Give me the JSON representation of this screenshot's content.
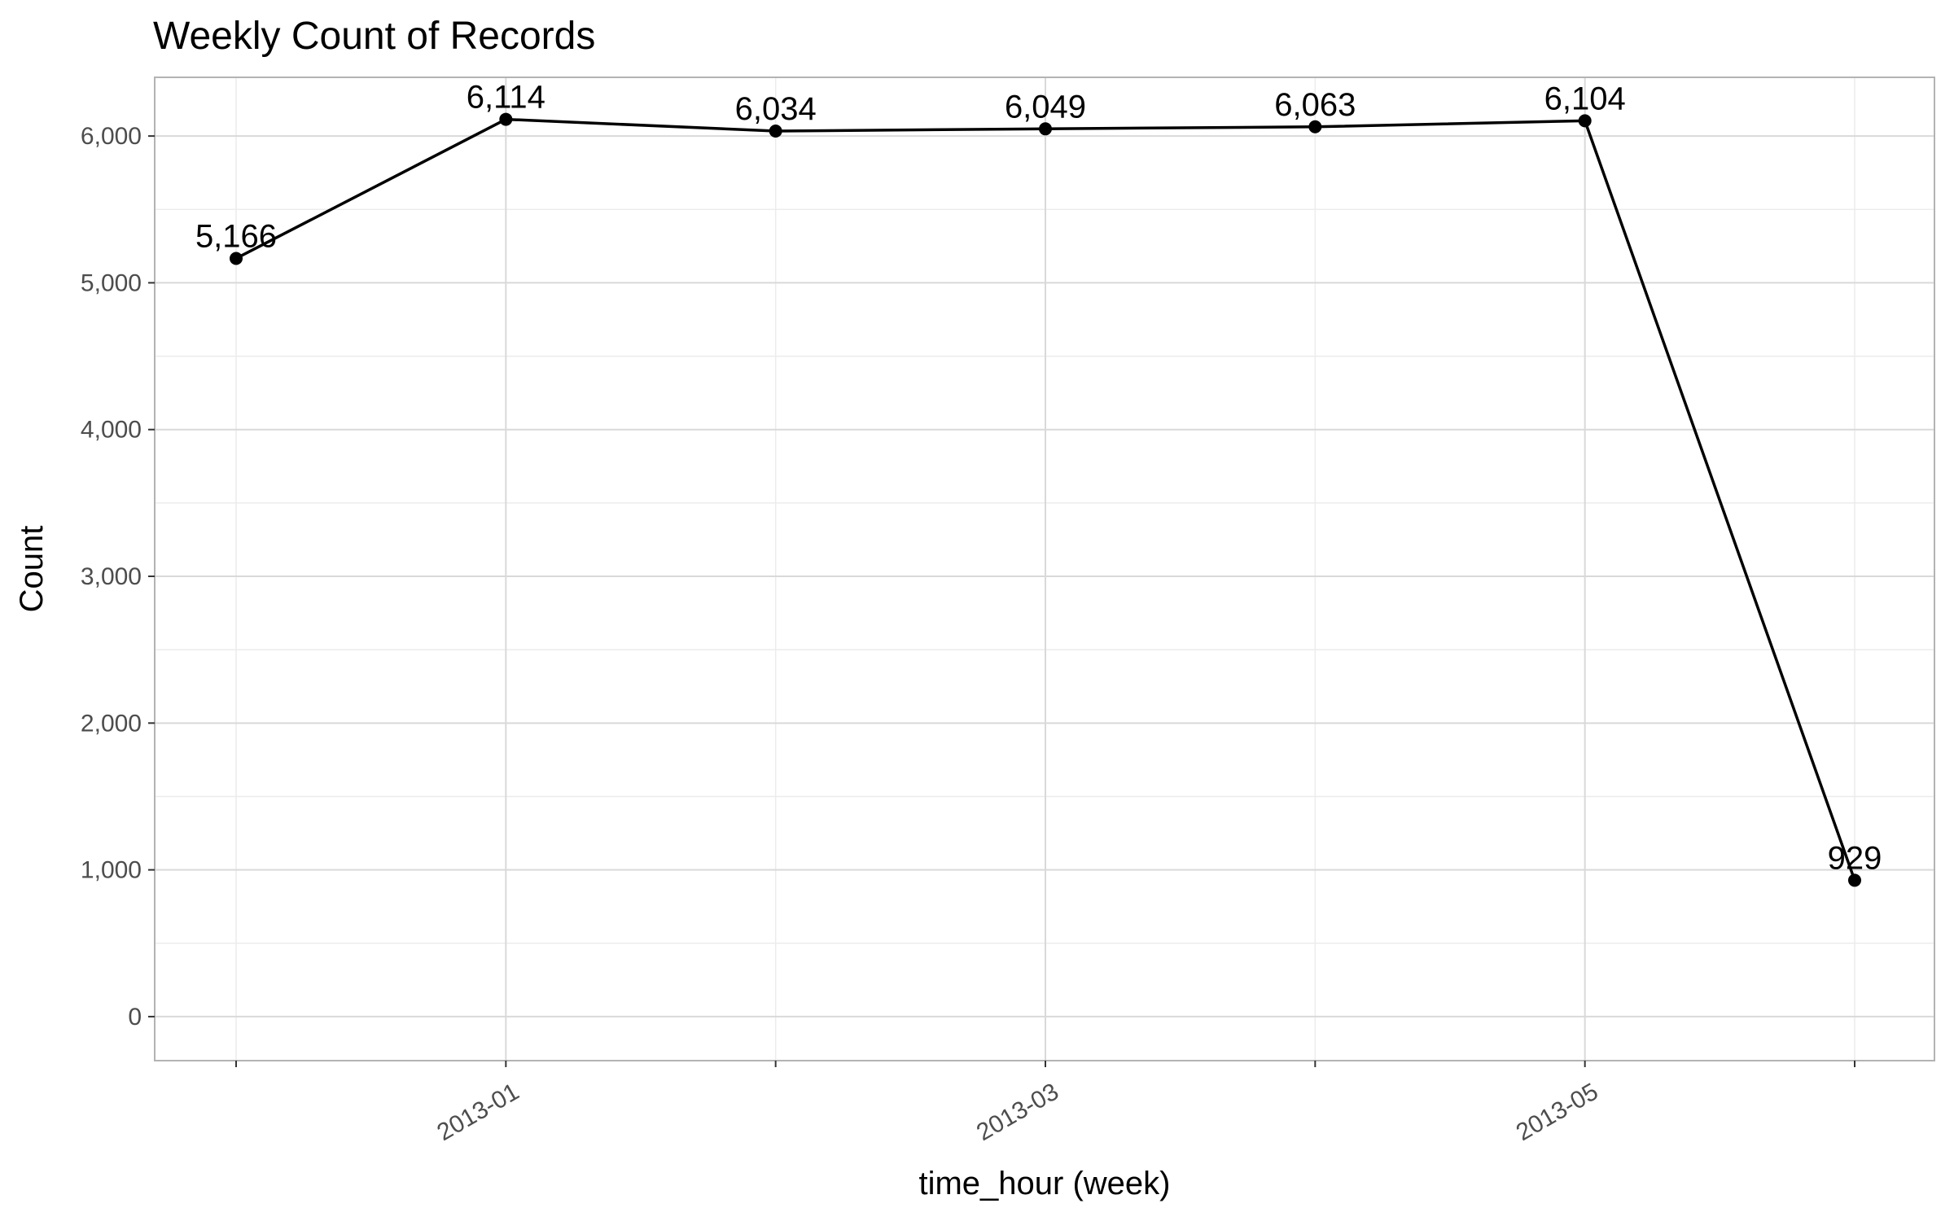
{
  "chart_data": {
    "type": "line",
    "title": "Weekly Count of Records",
    "xlabel": "time_hour (week)",
    "ylabel": "Count",
    "x": [
      "2012-12",
      "2013-01",
      "2013-02",
      "2013-03",
      "2013-04",
      "2013-05",
      "2013-06"
    ],
    "values": [
      5166,
      6114,
      6034,
      6049,
      6063,
      6104,
      929
    ],
    "data_labels": [
      "5,166",
      "6,114",
      "6,034",
      "6,049",
      "6,063",
      "6,104",
      "929"
    ],
    "x_tick_labels": [
      "2013-01",
      "2013-03",
      "2013-05"
    ],
    "y_ticks": [
      0,
      1000,
      2000,
      3000,
      4000,
      5000,
      6000
    ],
    "y_tick_labels": [
      "0",
      "1,000",
      "2,000",
      "3,000",
      "4,000",
      "5,000",
      "6,000"
    ],
    "ylim": [
      -300,
      6400
    ],
    "grid": true,
    "legend": "none",
    "colors": {
      "line": "#000000",
      "grid_major": "#d9d9d9",
      "grid_minor": "#ececec",
      "panel_border": "#b3b3b3"
    }
  }
}
